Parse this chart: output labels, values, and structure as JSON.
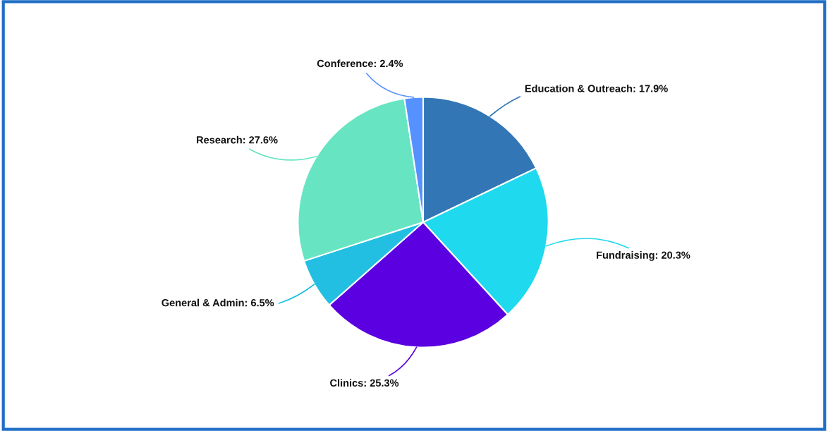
{
  "chart_data": {
    "type": "pie",
    "categories": [
      "Education & Outreach",
      "Fundraising",
      "Clinics",
      "General & Admin",
      "Research",
      "Conference"
    ],
    "values": [
      17.9,
      20.3,
      25.3,
      6.5,
      27.6,
      2.4
    ],
    "value_labels": [
      "17.9%",
      "20.3%",
      "25.3%",
      "6.5%",
      "27.6%",
      "2.4%"
    ],
    "colors": [
      "#3276b5",
      "#1fd9ee",
      "#5b00e0",
      "#22bfe3",
      "#67e5c2",
      "#5591ff"
    ]
  }
}
